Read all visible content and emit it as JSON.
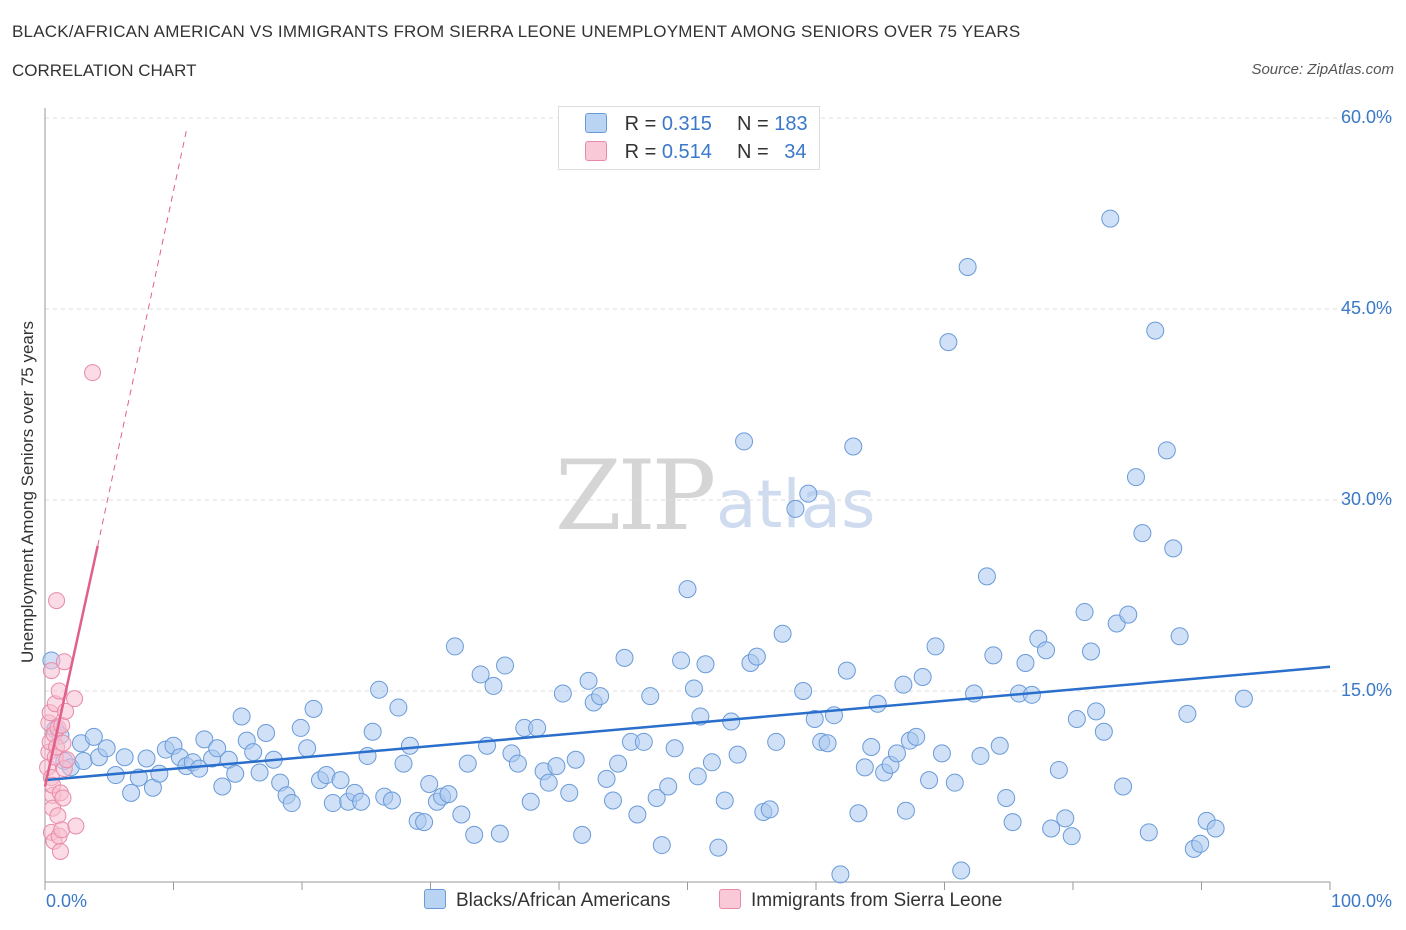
{
  "header": {
    "title": "BLACK/AFRICAN AMERICAN VS IMMIGRANTS FROM SIERRA LEONE UNEMPLOYMENT AMONG SENIORS OVER 75 YEARS",
    "subtitle": "CORRELATION CHART",
    "source": "Source: ZipAtlas.com"
  },
  "watermark": {
    "zip": "ZIP",
    "atlas": "atlas"
  },
  "legend": {
    "r_label": "R =",
    "n_label": "N =",
    "series": [
      {
        "r": "0.315",
        "n": "183"
      },
      {
        "r": "0.514",
        "n": "34"
      }
    ]
  },
  "colors": {
    "blue_fill": "#a9c8f0",
    "blue_stroke": "#6a9bd8",
    "blue_line": "#2a6fcc",
    "pink_fill": "#f7bdd0",
    "pink_stroke": "#e98aa8",
    "pink_line": "#e0608a"
  },
  "chart_data": {
    "type": "scatter",
    "title": "BLACK/AFRICAN AMERICAN VS IMMIGRANTS FROM SIERRA LEONE UNEMPLOYMENT AMONG SENIORS OVER 75 YEARS",
    "subtitle": "CORRELATION CHART",
    "xlabel": "",
    "ylabel": "Unemployment Among Seniors over 75 years",
    "xlim": [
      0,
      100
    ],
    "ylim": [
      0,
      60
    ],
    "x_tick_labels": [
      "0.0%",
      "100.0%"
    ],
    "y_ticks": [
      15,
      30,
      45,
      60
    ],
    "y_tick_labels": [
      "15.0%",
      "30.0%",
      "45.0%",
      "60.0%"
    ],
    "legend_position": "bottom",
    "series": [
      {
        "name": "Blacks/African Americans",
        "r": 0.315,
        "n": 183,
        "trend": {
          "x": [
            0,
            100
          ],
          "y": [
            8.0,
            16.9
          ]
        },
        "points": [
          [
            0.5,
            17.4
          ],
          [
            0.8,
            12.0
          ],
          [
            1.2,
            11.5
          ],
          [
            1.5,
            9.5
          ],
          [
            2.0,
            9.0
          ],
          [
            2.8,
            10.9
          ],
          [
            3.0,
            9.5
          ],
          [
            3.8,
            11.4
          ],
          [
            4.2,
            9.8
          ],
          [
            4.8,
            10.5
          ],
          [
            5.5,
            8.4
          ],
          [
            6.2,
            9.8
          ],
          [
            6.7,
            7.0
          ],
          [
            7.3,
            8.2
          ],
          [
            7.9,
            9.7
          ],
          [
            8.4,
            7.4
          ],
          [
            8.9,
            8.5
          ],
          [
            9.4,
            10.4
          ],
          [
            10.0,
            10.7
          ],
          [
            10.5,
            9.8
          ],
          [
            11.0,
            9.1
          ],
          [
            11.5,
            9.4
          ],
          [
            12.0,
            8.9
          ],
          [
            12.4,
            11.2
          ],
          [
            13.0,
            9.7
          ],
          [
            13.4,
            10.5
          ],
          [
            13.8,
            7.5
          ],
          [
            14.3,
            9.6
          ],
          [
            14.8,
            8.5
          ],
          [
            15.3,
            13.0
          ],
          [
            15.7,
            11.1
          ],
          [
            16.2,
            10.2
          ],
          [
            16.7,
            8.6
          ],
          [
            17.2,
            11.7
          ],
          [
            17.8,
            9.6
          ],
          [
            18.3,
            7.8
          ],
          [
            18.8,
            6.8
          ],
          [
            19.2,
            6.2
          ],
          [
            19.9,
            12.1
          ],
          [
            20.4,
            10.5
          ],
          [
            20.9,
            13.6
          ],
          [
            21.4,
            8.0
          ],
          [
            21.9,
            8.4
          ],
          [
            22.4,
            6.2
          ],
          [
            23.0,
            8.0
          ],
          [
            23.6,
            6.3
          ],
          [
            24.1,
            7.0
          ],
          [
            24.6,
            6.3
          ],
          [
            25.1,
            9.9
          ],
          [
            25.5,
            11.8
          ],
          [
            26.0,
            15.1
          ],
          [
            26.4,
            6.7
          ],
          [
            27.0,
            6.4
          ],
          [
            27.5,
            13.7
          ],
          [
            27.9,
            9.3
          ],
          [
            28.4,
            10.7
          ],
          [
            29.0,
            4.8
          ],
          [
            29.5,
            4.7
          ],
          [
            29.9,
            7.7
          ],
          [
            30.5,
            6.3
          ],
          [
            30.9,
            6.7
          ],
          [
            31.4,
            6.9
          ],
          [
            31.9,
            18.5
          ],
          [
            32.4,
            5.3
          ],
          [
            32.9,
            9.3
          ],
          [
            33.4,
            3.7
          ],
          [
            33.9,
            16.3
          ],
          [
            34.4,
            10.7
          ],
          [
            34.9,
            15.4
          ],
          [
            35.4,
            3.8
          ],
          [
            35.8,
            17.0
          ],
          [
            36.3,
            10.1
          ],
          [
            36.8,
            9.3
          ],
          [
            37.3,
            12.1
          ],
          [
            37.8,
            6.3
          ],
          [
            38.3,
            12.1
          ],
          [
            38.8,
            8.7
          ],
          [
            39.2,
            7.8
          ],
          [
            39.8,
            9.1
          ],
          [
            40.3,
            14.8
          ],
          [
            40.8,
            7.0
          ],
          [
            41.3,
            9.6
          ],
          [
            41.8,
            3.7
          ],
          [
            42.3,
            15.8
          ],
          [
            42.7,
            14.1
          ],
          [
            43.2,
            14.6
          ],
          [
            43.7,
            8.1
          ],
          [
            44.2,
            6.4
          ],
          [
            44.6,
            9.3
          ],
          [
            45.1,
            17.6
          ],
          [
            45.6,
            11.0
          ],
          [
            46.1,
            5.3
          ],
          [
            46.6,
            11.0
          ],
          [
            47.1,
            14.6
          ],
          [
            47.6,
            6.6
          ],
          [
            48.0,
            2.9
          ],
          [
            48.5,
            7.5
          ],
          [
            49.0,
            10.5
          ],
          [
            49.5,
            17.4
          ],
          [
            50.0,
            23.0
          ],
          [
            50.5,
            15.2
          ],
          [
            51.0,
            13.0
          ],
          [
            51.4,
            17.1
          ],
          [
            51.9,
            9.4
          ],
          [
            52.4,
            2.7
          ],
          [
            52.9,
            6.4
          ],
          [
            53.4,
            12.6
          ],
          [
            53.9,
            10.0
          ],
          [
            54.4,
            34.6
          ],
          [
            54.9,
            17.2
          ],
          [
            55.4,
            17.7
          ],
          [
            55.9,
            5.5
          ],
          [
            56.4,
            5.7
          ],
          [
            56.9,
            11.0
          ],
          [
            57.4,
            19.5
          ],
          [
            58.4,
            29.3
          ],
          [
            59.0,
            15.0
          ],
          [
            59.4,
            30.5
          ],
          [
            59.9,
            12.8
          ],
          [
            60.4,
            11.0
          ],
          [
            60.9,
            10.9
          ],
          [
            61.4,
            13.1
          ],
          [
            61.9,
            0.6
          ],
          [
            62.4,
            16.6
          ],
          [
            62.9,
            34.2
          ],
          [
            63.3,
            5.4
          ],
          [
            63.8,
            9.0
          ],
          [
            64.3,
            10.6
          ],
          [
            64.8,
            14.0
          ],
          [
            65.3,
            8.6
          ],
          [
            65.8,
            9.2
          ],
          [
            66.3,
            10.1
          ],
          [
            66.8,
            15.5
          ],
          [
            67.3,
            11.1
          ],
          [
            67.8,
            11.4
          ],
          [
            68.3,
            16.1
          ],
          [
            68.8,
            8.0
          ],
          [
            69.3,
            18.5
          ],
          [
            69.8,
            10.1
          ],
          [
            70.3,
            42.4
          ],
          [
            70.8,
            7.8
          ],
          [
            71.3,
            0.9
          ],
          [
            71.8,
            48.3
          ],
          [
            72.3,
            14.8
          ],
          [
            72.8,
            9.9
          ],
          [
            73.3,
            24.0
          ],
          [
            73.8,
            17.8
          ],
          [
            74.3,
            10.7
          ],
          [
            74.8,
            6.6
          ],
          [
            75.3,
            4.7
          ],
          [
            75.8,
            14.8
          ],
          [
            76.3,
            17.2
          ],
          [
            76.8,
            14.7
          ],
          [
            77.3,
            19.1
          ],
          [
            77.9,
            18.2
          ],
          [
            78.3,
            4.2
          ],
          [
            78.9,
            8.8
          ],
          [
            79.4,
            5.0
          ],
          [
            79.9,
            3.6
          ],
          [
            80.3,
            12.8
          ],
          [
            80.9,
            21.2
          ],
          [
            81.4,
            18.1
          ],
          [
            81.8,
            13.4
          ],
          [
            82.4,
            11.8
          ],
          [
            82.9,
            52.1
          ],
          [
            83.4,
            20.3
          ],
          [
            83.9,
            7.5
          ],
          [
            84.3,
            21.0
          ],
          [
            84.9,
            31.8
          ],
          [
            85.4,
            27.4
          ],
          [
            85.9,
            3.9
          ],
          [
            86.4,
            43.3
          ],
          [
            87.3,
            33.9
          ],
          [
            87.8,
            26.2
          ],
          [
            88.3,
            19.3
          ],
          [
            88.9,
            13.2
          ],
          [
            89.4,
            2.6
          ],
          [
            89.9,
            3.0
          ],
          [
            90.4,
            4.8
          ],
          [
            91.1,
            4.2
          ],
          [
            93.3,
            14.4
          ],
          [
            67.0,
            5.6
          ],
          [
            50.8,
            8.3
          ]
        ]
      },
      {
        "name": "Immigrants from Sierra Leone",
        "r": 0.514,
        "n": 34,
        "trend": {
          "x": [
            0,
            4.1
          ],
          "y": [
            7.5,
            26.4
          ]
        },
        "trend_dashed": {
          "x": [
            4.1,
            11.0
          ],
          "y": [
            26.4,
            59.0
          ]
        },
        "points": [
          [
            0.2,
            9.0
          ],
          [
            0.3,
            10.2
          ],
          [
            0.3,
            12.5
          ],
          [
            0.4,
            11.0
          ],
          [
            0.4,
            13.3
          ],
          [
            0.5,
            8.2
          ],
          [
            0.5,
            16.6
          ],
          [
            0.5,
            3.9
          ],
          [
            0.6,
            6.8
          ],
          [
            0.6,
            5.8
          ],
          [
            0.6,
            7.6
          ],
          [
            0.7,
            11.6
          ],
          [
            0.7,
            3.2
          ],
          [
            0.8,
            14.0
          ],
          [
            0.8,
            9.8
          ],
          [
            0.9,
            22.1
          ],
          [
            0.9,
            10.6
          ],
          [
            1.0,
            12.1
          ],
          [
            1.0,
            5.2
          ],
          [
            1.1,
            3.6
          ],
          [
            1.1,
            15.0
          ],
          [
            1.2,
            2.4
          ],
          [
            1.2,
            7.0
          ],
          [
            1.3,
            12.3
          ],
          [
            1.3,
            4.1
          ],
          [
            1.4,
            10.9
          ],
          [
            1.4,
            6.6
          ],
          [
            1.5,
            17.3
          ],
          [
            1.5,
            8.9
          ],
          [
            1.6,
            13.4
          ],
          [
            1.7,
            9.6
          ],
          [
            2.3,
            14.4
          ],
          [
            2.4,
            4.4
          ],
          [
            3.7,
            40.0
          ]
        ]
      }
    ]
  },
  "bottom_legend": [
    "Blacks/African Americans",
    "Immigrants from Sierra Leone"
  ]
}
